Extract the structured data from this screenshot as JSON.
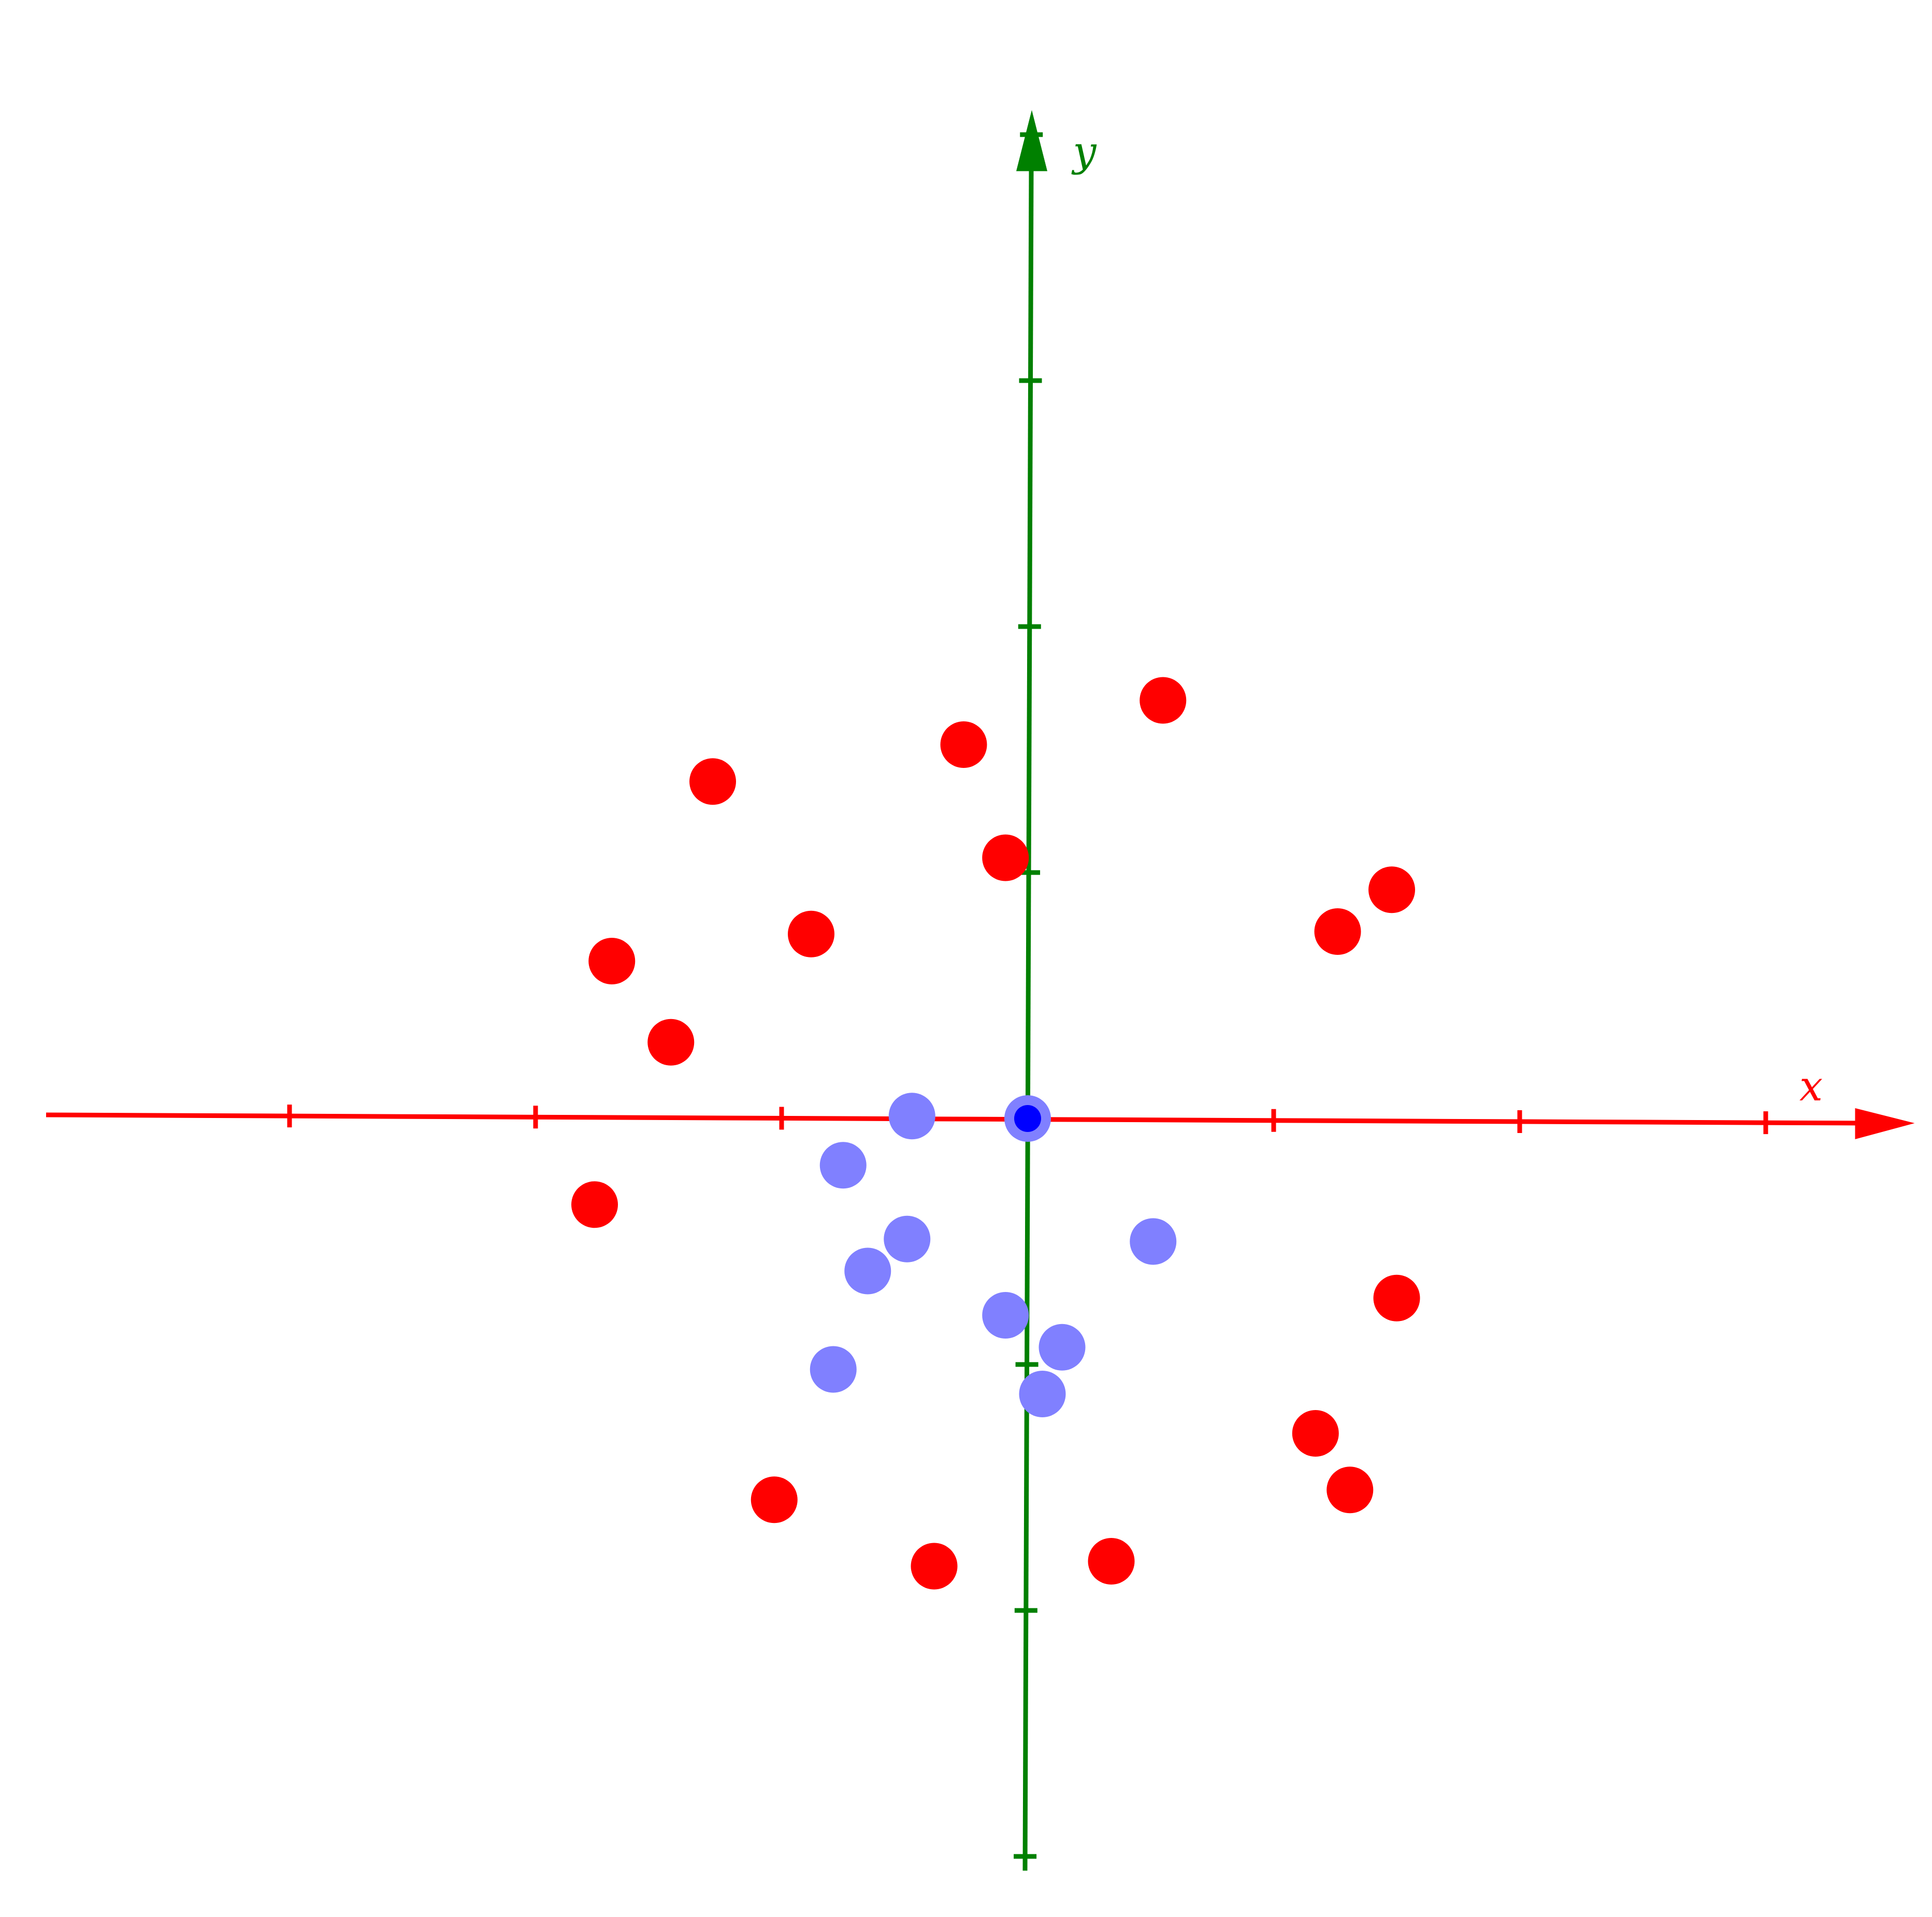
{
  "colors": {
    "x_axis": "#ff0000",
    "y_axis": "#008000",
    "red_points": "#ff0000",
    "blue_points": "#8080ff",
    "origin_marker": "#0000ff"
  },
  "chart_data": {
    "type": "scatter",
    "xlabel": "x",
    "ylabel": "y",
    "xlim": [
      -4,
      3.5
    ],
    "ylim": [
      -3.1,
      4.1
    ],
    "x_ticks": [
      -3,
      -2,
      -1,
      0,
      1,
      2,
      3
    ],
    "y_ticks": [
      -3,
      -2,
      -1,
      0,
      1,
      2,
      3,
      4
    ],
    "grid": false,
    "series": [
      {
        "color": "#ff0000",
        "points": [
          [
            -1.28,
            1.37
          ],
          [
            -1.69,
            0.64
          ],
          [
            -1.45,
            0.31
          ],
          [
            -0.88,
            0.75
          ],
          [
            -0.26,
            1.52
          ],
          [
            -0.09,
            1.06
          ],
          [
            0.55,
            1.7
          ],
          [
            1.26,
            0.76
          ],
          [
            1.48,
            0.93
          ],
          [
            -1.76,
            -0.35
          ],
          [
            1.5,
            -0.73
          ],
          [
            1.17,
            -1.28
          ],
          [
            1.31,
            -1.51
          ],
          [
            -1.03,
            -1.55
          ],
          [
            -0.38,
            -1.82
          ],
          [
            0.34,
            -1.8
          ]
        ]
      },
      {
        "color": "#8080ff",
        "points": [
          [
            -0.47,
            0.01
          ],
          [
            0.0,
            0.0
          ],
          [
            -0.75,
            -0.19
          ],
          [
            -0.49,
            -0.49
          ],
          [
            -0.65,
            -0.62
          ],
          [
            0.51,
            -0.5
          ],
          [
            -0.09,
            -0.8
          ],
          [
            0.14,
            -0.93
          ],
          [
            -0.79,
            -1.02
          ],
          [
            0.06,
            -1.12
          ]
        ]
      },
      {
        "color": "#0000ff",
        "points": [
          [
            0.0,
            0.0
          ]
        ]
      }
    ]
  }
}
